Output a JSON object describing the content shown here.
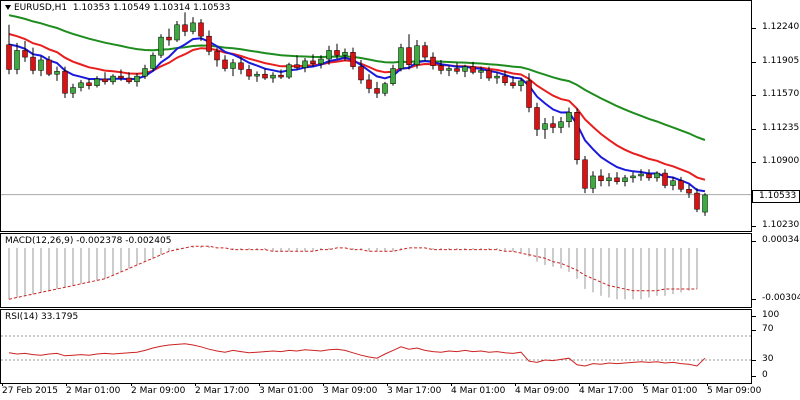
{
  "header": {
    "symbol": "EURUSD,H1",
    "open": "1.10353",
    "high": "1.10549",
    "low": "1.10314",
    "close": "1.10533"
  },
  "price_axis": {
    "ticks": [
      "1.12240",
      "1.11905",
      "1.11570",
      "1.11235",
      "1.10900",
      "1.10533",
      "1.10230"
    ],
    "current": "1.10533"
  },
  "macd": {
    "label": "MACD(12,26,9) -0.002378 -0.002405",
    "ticks": [
      "0.000346",
      "-0.003044"
    ]
  },
  "rsi": {
    "label": "RSI(14) 33.1795",
    "ticks": [
      "100",
      "70",
      "30",
      "0"
    ]
  },
  "time_axis": {
    "labels": [
      "27 Feb 2015",
      "2 Mar 01:00",
      "2 Mar 09:00",
      "2 Mar 17:00",
      "3 Mar 01:00",
      "3 Mar 09:00",
      "3 Mar 17:00",
      "4 Mar 01:00",
      "4 Mar 09:00",
      "4 Mar 17:00",
      "5 Mar 01:00",
      "5 Mar 09:00"
    ]
  },
  "colors": {
    "bull": "#3caa3c",
    "bear": "#dd1111",
    "ma_fast": "#1a1adc",
    "ma_mid": "#e81e1e",
    "ma_slow": "#1e8c1e",
    "signal": "#cc2222",
    "hist": "#bbbbbb"
  },
  "candles": [
    [
      1.1211,
      1.1232,
      1.118,
      1.1185
    ],
    [
      1.1185,
      1.1213,
      1.118,
      1.1205
    ],
    [
      1.1205,
      1.1215,
      1.1193,
      1.1198
    ],
    [
      1.1198,
      1.1208,
      1.118,
      1.1184
    ],
    [
      1.1184,
      1.1199,
      1.1178,
      1.1195
    ],
    [
      1.1195,
      1.1199,
      1.1178,
      1.118
    ],
    [
      1.118,
      1.1188,
      1.1173,
      1.1183
    ],
    [
      1.1183,
      1.1188,
      1.1155,
      1.116
    ],
    [
      1.116,
      1.117,
      1.1155,
      1.1166
    ],
    [
      1.1166,
      1.1174,
      1.1162,
      1.1171
    ],
    [
      1.1171,
      1.1175,
      1.1164,
      1.1168
    ],
    [
      1.1168,
      1.1178,
      1.1166,
      1.1175
    ],
    [
      1.1175,
      1.1182,
      1.1169,
      1.1172
    ],
    [
      1.1172,
      1.118,
      1.1169,
      1.1178
    ],
    [
      1.1178,
      1.1185,
      1.1173,
      1.1176
    ],
    [
      1.1176,
      1.1182,
      1.117,
      1.1172
    ],
    [
      1.1172,
      1.1181,
      1.1167,
      1.1178
    ],
    [
      1.1178,
      1.119,
      1.1175,
      1.1186
    ],
    [
      1.1186,
      1.1203,
      1.1183,
      1.12
    ],
    [
      1.12,
      1.1222,
      1.1197,
      1.1219
    ],
    [
      1.1219,
      1.1228,
      1.121,
      1.1216
    ],
    [
      1.1216,
      1.1236,
      1.1214,
      1.1232
    ],
    [
      1.1232,
      1.1245,
      1.122,
      1.1225
    ],
    [
      1.1225,
      1.124,
      1.1222,
      1.1234
    ],
    [
      1.1234,
      1.1238,
      1.1215,
      1.122
    ],
    [
      1.122,
      1.1226,
      1.12,
      1.1204
    ],
    [
      1.1204,
      1.1208,
      1.1188,
      1.1195
    ],
    [
      1.1195,
      1.12,
      1.1183,
      1.1186
    ],
    [
      1.1186,
      1.1196,
      1.1178,
      1.1192
    ],
    [
      1.1192,
      1.1198,
      1.118,
      1.1185
    ],
    [
      1.1185,
      1.119,
      1.1174,
      1.1178
    ],
    [
      1.1178,
      1.1183,
      1.1172,
      1.118
    ],
    [
      1.118,
      1.1186,
      1.1174,
      1.1176
    ],
    [
      1.1176,
      1.1182,
      1.1171,
      1.1179
    ],
    [
      1.1179,
      1.1185,
      1.1175,
      1.1177
    ],
    [
      1.1177,
      1.1192,
      1.1175,
      1.119
    ],
    [
      1.119,
      1.12,
      1.1185,
      1.1187
    ],
    [
      1.1187,
      1.1197,
      1.1182,
      1.1194
    ],
    [
      1.1194,
      1.1201,
      1.1188,
      1.1191
    ],
    [
      1.1191,
      1.12,
      1.1186,
      1.1196
    ],
    [
      1.1196,
      1.121,
      1.119,
      1.1205
    ],
    [
      1.1205,
      1.1212,
      1.1196,
      1.12
    ],
    [
      1.12,
      1.1207,
      1.1194,
      1.1203
    ],
    [
      1.1203,
      1.1208,
      1.1185,
      1.1188
    ],
    [
      1.1188,
      1.1195,
      1.117,
      1.1174
    ],
    [
      1.1174,
      1.118,
      1.116,
      1.1165
    ],
    [
      1.1165,
      1.1172,
      1.1155,
      1.116
    ],
    [
      1.116,
      1.1172,
      1.1157,
      1.117
    ],
    [
      1.117,
      1.119,
      1.1168,
      1.1186
    ],
    [
      1.1186,
      1.1212,
      1.1183,
      1.1208
    ],
    [
      1.1208,
      1.1222,
      1.1185,
      1.119
    ],
    [
      1.119,
      1.1216,
      1.1186,
      1.121
    ],
    [
      1.121,
      1.1214,
      1.1194,
      1.1198
    ],
    [
      1.1198,
      1.1203,
      1.1185,
      1.1189
    ],
    [
      1.1189,
      1.1195,
      1.118,
      1.1184
    ],
    [
      1.1184,
      1.1189,
      1.1178,
      1.1186
    ],
    [
      1.1186,
      1.1192,
      1.118,
      1.1183
    ],
    [
      1.1183,
      1.119,
      1.1177,
      1.1188
    ],
    [
      1.1188,
      1.1193,
      1.118,
      1.1182
    ],
    [
      1.1182,
      1.1188,
      1.1175,
      1.1184
    ],
    [
      1.1184,
      1.1188,
      1.1173,
      1.1176
    ],
    [
      1.1176,
      1.1182,
      1.117,
      1.1178
    ],
    [
      1.1178,
      1.1184,
      1.1168,
      1.1171
    ],
    [
      1.1171,
      1.1178,
      1.1165,
      1.1168
    ],
    [
      1.1168,
      1.1176,
      1.1162,
      1.1173
    ],
    [
      1.1173,
      1.1181,
      1.114,
      1.1145
    ],
    [
      1.1145,
      1.115,
      1.1115,
      1.1122
    ],
    [
      1.1122,
      1.1134,
      1.1112,
      1.1128
    ],
    [
      1.1128,
      1.1136,
      1.1118,
      1.1124
    ],
    [
      1.1124,
      1.1135,
      1.1118,
      1.113
    ],
    [
      1.113,
      1.1145,
      1.1124,
      1.114
    ],
    [
      1.114,
      1.1144,
      1.1085,
      1.109
    ],
    [
      1.109,
      1.1094,
      1.1055,
      1.106
    ],
    [
      1.106,
      1.1078,
      1.1055,
      1.1073
    ],
    [
      1.1073,
      1.108,
      1.1062,
      1.1068
    ],
    [
      1.1068,
      1.1076,
      1.1062,
      1.1071
    ],
    [
      1.1071,
      1.1077,
      1.1064,
      1.1067
    ],
    [
      1.1067,
      1.1074,
      1.1062,
      1.1071
    ],
    [
      1.1071,
      1.1077,
      1.1066,
      1.1073
    ],
    [
      1.1073,
      1.108,
      1.1068,
      1.1075
    ],
    [
      1.1075,
      1.108,
      1.1068,
      1.1071
    ],
    [
      1.1071,
      1.1078,
      1.1067,
      1.1076
    ],
    [
      1.1076,
      1.108,
      1.106,
      1.1063
    ],
    [
      1.1063,
      1.1072,
      1.1058,
      1.1068
    ],
    [
      1.1068,
      1.1072,
      1.1056,
      1.1059
    ],
    [
      1.1059,
      1.1064,
      1.105,
      1.1055
    ],
    [
      1.1055,
      1.106,
      1.1035,
      1.1038
    ],
    [
      1.1035,
      1.1055,
      1.1031,
      1.1053
    ]
  ],
  "macd_signal": [
    -0.003,
    -0.0029,
    -0.0028,
    -0.0027,
    -0.0026,
    -0.0025,
    -0.0024,
    -0.0023,
    -0.0022,
    -0.0021,
    -0.002,
    -0.0019,
    -0.0018,
    -0.0016,
    -0.0014,
    -0.0012,
    -0.001,
    -0.0008,
    -0.0006,
    -0.0004,
    -0.0002,
    -0.0001,
    0.0,
    0.0001,
    0.0001,
    0.0001,
    0.0,
    0.0,
    -0.0001,
    -0.0001,
    -0.0001,
    -0.0001,
    -0.0001,
    -0.0002,
    -0.0002,
    -0.0002,
    -0.0002,
    -0.0002,
    -0.0002,
    -0.0001,
    -0.0001,
    0.0,
    0.0,
    -0.0001,
    -0.0001,
    -0.0002,
    -0.0002,
    -0.0002,
    -0.0002,
    -0.0001,
    0.0,
    0.0,
    0.0,
    -0.0001,
    -0.0001,
    -0.0001,
    -0.0001,
    -0.0001,
    -0.0001,
    -0.0001,
    -0.0001,
    -0.0001,
    -0.0002,
    -0.0002,
    -0.0003,
    -0.0004,
    -0.0005,
    -0.0006,
    -0.0008,
    -0.0009,
    -0.0011,
    -0.0013,
    -0.0016,
    -0.0018,
    -0.002,
    -0.0022,
    -0.0023,
    -0.0024,
    -0.0025,
    -0.0025,
    -0.0025,
    -0.0025,
    -0.0024,
    -0.0024,
    -0.0024,
    -0.0024,
    -0.0024
  ],
  "macd_hist": [
    -0.003,
    -0.0029,
    -0.0028,
    -0.0027,
    -0.0026,
    -0.0025,
    -0.0024,
    -0.0023,
    -0.0022,
    -0.0021,
    -0.002,
    -0.0019,
    -0.0018,
    -0.0016,
    -0.0014,
    -0.0012,
    -0.001,
    -0.0008,
    -0.0006,
    -0.0004,
    -0.0002,
    -0.0001,
    0.0,
    0.0001,
    0.0001,
    0.0001,
    0.0,
    0.0,
    -0.0001,
    -0.0001,
    -0.0001,
    -0.0001,
    -0.0001,
    -0.0002,
    -0.0002,
    -0.0002,
    -0.0002,
    -0.0002,
    -0.0002,
    -0.0001,
    -0.0001,
    0.0,
    0.0,
    -0.0001,
    -0.0001,
    -0.0002,
    -0.0002,
    -0.0002,
    -0.0002,
    -0.0001,
    0.0,
    0.0,
    0.0,
    -0.0001,
    -0.0001,
    -0.0001,
    -0.0001,
    -0.0001,
    -0.0001,
    -0.0001,
    -0.0001,
    -0.0001,
    -0.0002,
    -0.0002,
    -0.0003,
    -0.0005,
    -0.0008,
    -0.001,
    -0.0011,
    -0.0012,
    -0.0014,
    -0.0018,
    -0.0024,
    -0.0026,
    -0.0028,
    -0.0029,
    -0.003,
    -0.003,
    -0.003,
    -0.003,
    -0.0029,
    -0.0028,
    -0.0028,
    -0.0027,
    -0.0026,
    -0.0025,
    -0.0024
  ],
  "rsi_values": [
    42,
    40,
    41,
    39,
    38,
    40,
    41,
    37,
    38,
    39,
    38,
    40,
    41,
    40,
    41,
    42,
    43,
    46,
    50,
    53,
    55,
    56,
    57,
    55,
    52,
    48,
    45,
    43,
    46,
    44,
    42,
    43,
    44,
    45,
    44,
    46,
    45,
    47,
    46,
    45,
    47,
    48,
    46,
    42,
    38,
    35,
    33,
    40,
    46,
    52,
    48,
    50,
    46,
    44,
    43,
    45,
    44,
    46,
    44,
    45,
    43,
    44,
    42,
    41,
    43,
    28,
    26,
    30,
    29,
    31,
    33,
    22,
    20,
    24,
    23,
    25,
    24,
    25,
    26,
    27,
    26,
    27,
    25,
    26,
    24,
    23,
    20,
    33
  ]
}
